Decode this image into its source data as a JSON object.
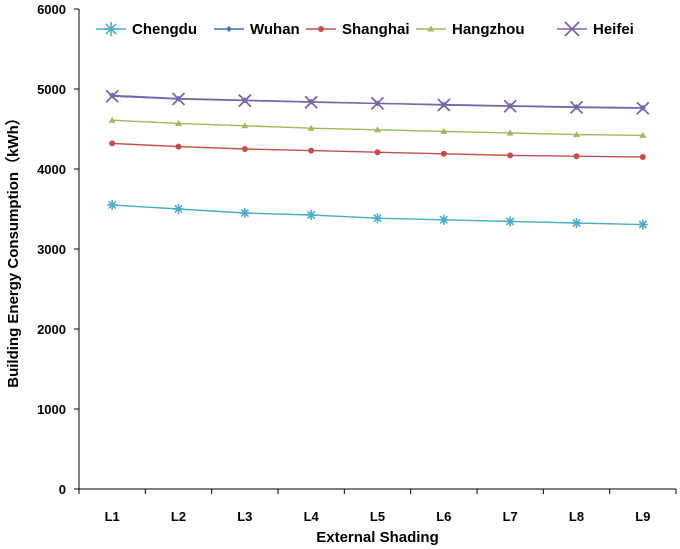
{
  "chart_data": {
    "type": "line",
    "xlabel": "External Shading",
    "ylabel": "Building Energy Consumption（kWh）",
    "categories": [
      "L1",
      "L2",
      "L3",
      "L4",
      "L5",
      "L6",
      "L7",
      "L8",
      "L9"
    ],
    "ylim": [
      0,
      6000
    ],
    "yticks": [
      0,
      1000,
      2000,
      3000,
      4000,
      5000,
      6000
    ],
    "grid": false,
    "legend_position": "top",
    "series": [
      {
        "name": "Chengdu",
        "color": "#4bacc6",
        "marker": "asterisk",
        "values": [
          3550,
          3500,
          3450,
          3425,
          3385,
          3365,
          3345,
          3325,
          3305
        ]
      },
      {
        "name": "Wuhan",
        "color": "#4472c4",
        "marker": "diamond",
        "values": [
          4920,
          4880,
          4860,
          4840,
          4820,
          4805,
          4790,
          4775,
          4765
        ]
      },
      {
        "name": "Shanghai",
        "color": "#c0504d",
        "marker": "circle",
        "values": [
          4320,
          4280,
          4250,
          4230,
          4210,
          4190,
          4170,
          4160,
          4150
        ]
      },
      {
        "name": "Hangzhou",
        "color": "#9bbb59",
        "marker": "triangle",
        "values": [
          4610,
          4570,
          4540,
          4510,
          4490,
          4470,
          4450,
          4430,
          4420
        ]
      },
      {
        "name": "Heifei",
        "color": "#8064a2",
        "marker": "x",
        "values": [
          4910,
          4875,
          4855,
          4835,
          4820,
          4800,
          4785,
          4770,
          4760
        ]
      }
    ]
  }
}
